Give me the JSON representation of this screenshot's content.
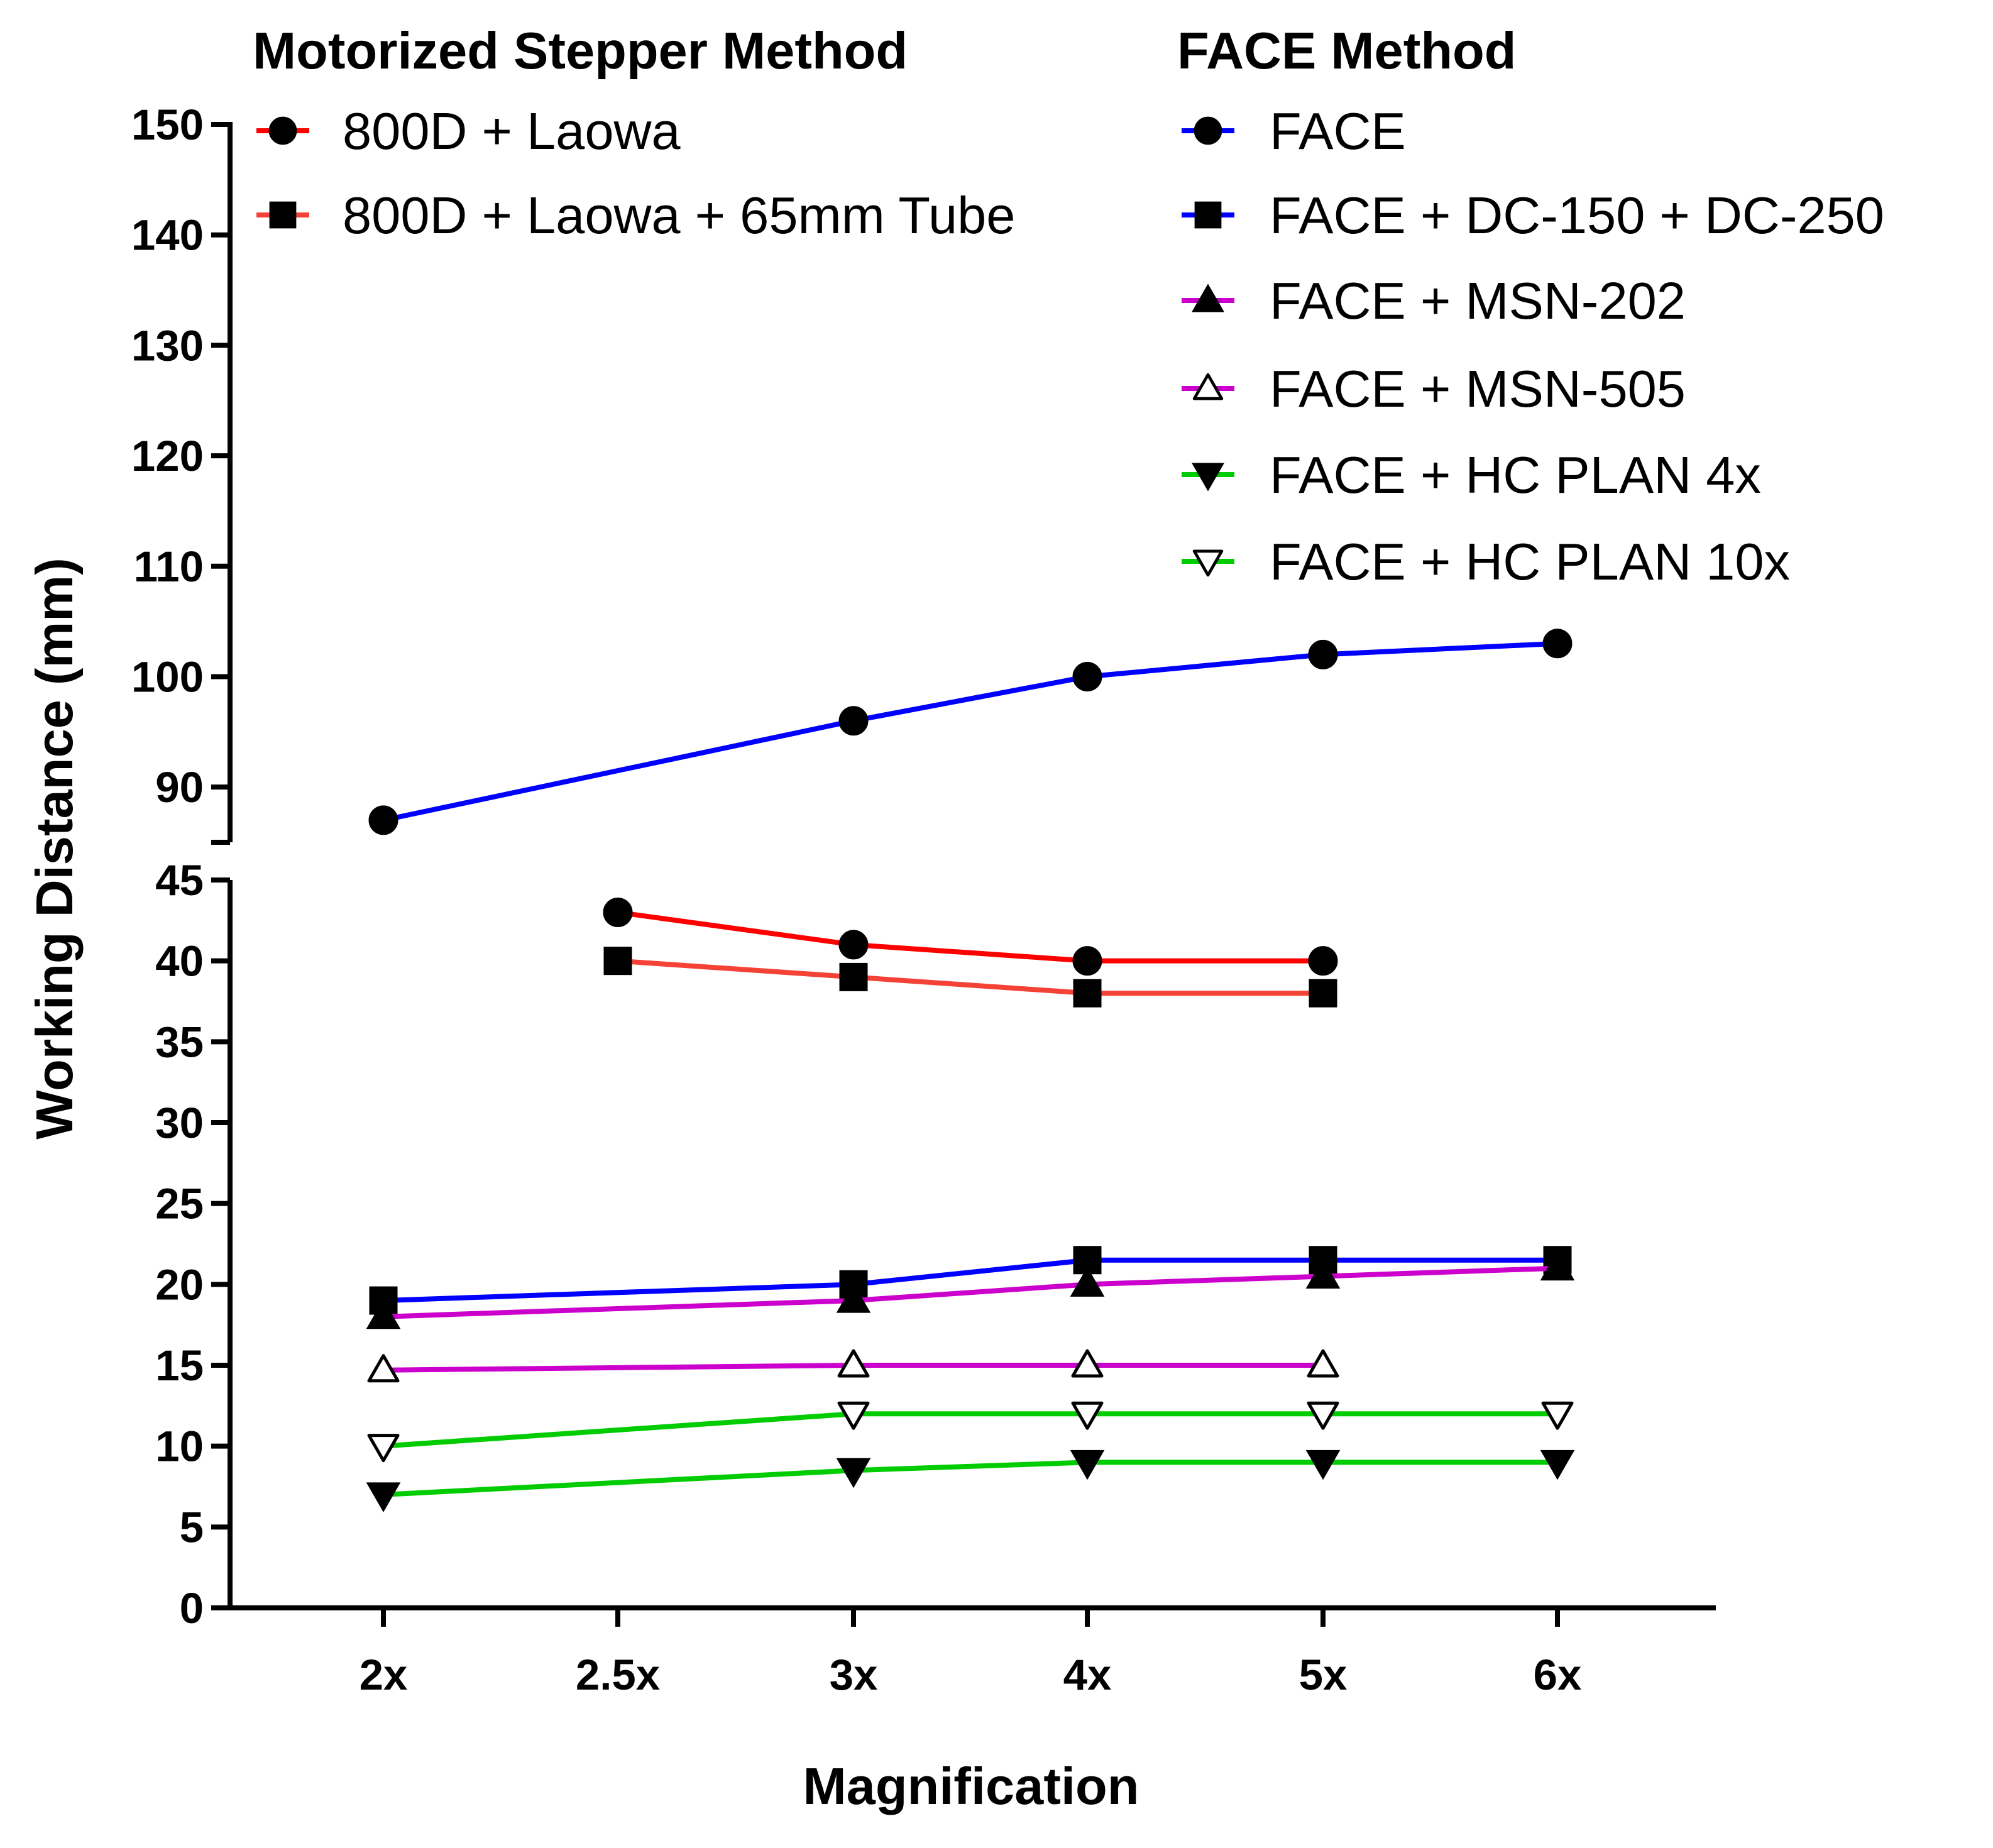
{
  "chart_data": {
    "type": "line",
    "xlabel": "Magnification",
    "ylabel": "Working Distance (mm)",
    "categories": [
      "2x",
      "2.5x",
      "3x",
      "4x",
      "5x",
      "6x"
    ],
    "y_axis_broken": true,
    "y_lower_range": [
      0,
      45
    ],
    "y_upper_range": [
      85,
      150
    ],
    "y_lower_ticks": [
      "0",
      "5",
      "10",
      "15",
      "20",
      "25",
      "30",
      "35",
      "40",
      "45"
    ],
    "y_upper_ticks": [
      "90",
      "100",
      "110",
      "120",
      "130",
      "140",
      "150"
    ],
    "legend_groups": [
      {
        "title": "Motorized Stepper Method",
        "series_indices": [
          0,
          1
        ]
      },
      {
        "title": "FACE Method",
        "series_indices": [
          2,
          3,
          4,
          5,
          6,
          7
        ]
      }
    ],
    "series": [
      {
        "name": "800D + Laowa",
        "color": "#ff0000",
        "marker": "circle",
        "values": [
          null,
          43,
          41,
          40,
          40,
          null
        ]
      },
      {
        "name": "800D + Laowa + 65mm Tube",
        "color": "#f44336",
        "marker": "square",
        "values": [
          null,
          40,
          39,
          38,
          38,
          null
        ]
      },
      {
        "name": "FACE",
        "color": "#0000ff",
        "marker": "circle",
        "values": [
          87,
          null,
          96,
          100,
          102,
          103
        ]
      },
      {
        "name": "FACE + DC-150 + DC-250",
        "color": "#0000ff",
        "marker": "square",
        "values": [
          19,
          null,
          20,
          21.5,
          21.5,
          21.5
        ]
      },
      {
        "name": "FACE + MSN-202",
        "color": "#cc00cc",
        "marker": "triangle-up",
        "values": [
          18,
          null,
          19,
          20,
          20.5,
          21
        ]
      },
      {
        "name": "FACE + MSN-505",
        "color": "#cc00cc",
        "marker": "triangle-up-open",
        "values": [
          14.7,
          null,
          15,
          15,
          15,
          null
        ]
      },
      {
        "name": "FACE + HC PLAN 4x",
        "color": "#00cc00",
        "marker": "triangle-down",
        "values": [
          7,
          null,
          8.5,
          9,
          9,
          9
        ]
      },
      {
        "name": "FACE + HC PLAN 10x",
        "color": "#00cc00",
        "marker": "triangle-down-open",
        "values": [
          10,
          null,
          12,
          12,
          12,
          12
        ]
      }
    ]
  }
}
